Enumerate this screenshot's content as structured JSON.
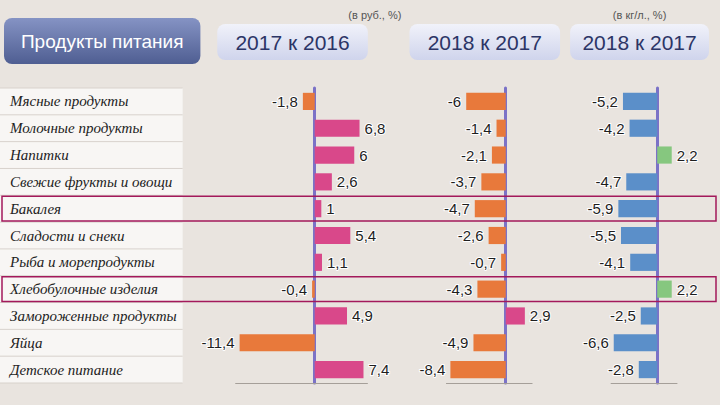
{
  "title": "Продукты питания",
  "chart_data": [
    {
      "type": "bar",
      "orientation": "horizontal",
      "title": "2017 к 2016",
      "subtitle": "(в руб., %)",
      "categories": [
        "Мясные продукты",
        "Молочные продукты",
        "Напитки",
        "Свежие фрукты и овощи",
        "Бакалея",
        "Сладости и снеки",
        "Рыба и морепродукты",
        "Хлебобулочные изделия",
        "Замороженные продукты",
        "Яйца",
        "Детское питание"
      ],
      "values": [
        -1.8,
        6.8,
        6,
        2.6,
        1,
        5.4,
        1.1,
        -0.4,
        4.9,
        -11.4,
        7.4
      ],
      "value_labels": [
        "-1,8",
        "6,8",
        "6",
        "2,6",
        "1",
        "5,4",
        "1,1",
        "-0,4",
        "4,9",
        "-11,4",
        "7,4"
      ],
      "colors": [
        "#e8793b",
        "#d9488a",
        "#d9488a",
        "#d9488a",
        "#d9488a",
        "#d9488a",
        "#d9488a",
        "#e8793b",
        "#d9488a",
        "#e8793b",
        "#d9488a"
      ],
      "xlim": [
        -12,
        8
      ],
      "grid": false,
      "data_labels": true,
      "tick_labels": "y"
    },
    {
      "type": "bar",
      "orientation": "horizontal",
      "title": "2018 к 2017",
      "categories": [
        "Мясные продукты",
        "Молочные продукты",
        "Напитки",
        "Свежие фрукты и овощи",
        "Бакалея",
        "Сладости и снеки",
        "Рыба и морепродукты",
        "Хлебобулочные изделия",
        "Замороженные продукты",
        "Яйца",
        "Детское питание"
      ],
      "values": [
        -6,
        -1.4,
        -2.1,
        -3.7,
        -4.7,
        -2.6,
        -0.7,
        -4.3,
        2.9,
        -4.9,
        -8.4
      ],
      "value_labels": [
        "-6",
        "-1,4",
        "-2,1",
        "-3,7",
        "-4,7",
        "-2,6",
        "-0,7",
        "-4,3",
        "2,9",
        "-4,9",
        "-8,4"
      ],
      "colors": [
        "#e8793b",
        "#e8793b",
        "#e8793b",
        "#e8793b",
        "#e8793b",
        "#e8793b",
        "#e8793b",
        "#e8793b",
        "#d9488a",
        "#e8793b",
        "#e8793b"
      ],
      "xlim": [
        -9,
        4
      ],
      "grid": false,
      "data_labels": true,
      "tick_labels": false
    },
    {
      "type": "bar",
      "orientation": "horizontal",
      "title": "2018 к 2017",
      "subtitle": "(в кг/л., %)",
      "categories": [
        "Мясные продукты",
        "Молочные продукты",
        "Напитки",
        "Свежие фрукты и овощи",
        "Бакалея",
        "Сладости и снеки",
        "Рыба и морепродукты",
        "Хлебобулочные изделия",
        "Замороженные продукты",
        "Яйца",
        "Детское питание"
      ],
      "values": [
        -5.2,
        -4.2,
        2.2,
        -4.7,
        -5.9,
        -5.5,
        -4.1,
        2.2,
        -2.5,
        -6.6,
        -2.8
      ],
      "value_labels": [
        "-5,2",
        "-4,2",
        "2,2",
        "-4,7",
        "-5,9",
        "-5,5",
        "-4,1",
        "2,2",
        "-2,5",
        "-6,6",
        "-2,8"
      ],
      "colors": [
        "#5b8fc9",
        "#5b8fc9",
        "#86c77f",
        "#5b8fc9",
        "#5b8fc9",
        "#5b8fc9",
        "#5b8fc9",
        "#86c77f",
        "#5b8fc9",
        "#5b8fc9",
        "#5b8fc9"
      ],
      "xlim": [
        -7,
        3
      ],
      "grid": false,
      "data_labels": true,
      "tick_labels": false
    }
  ]
}
